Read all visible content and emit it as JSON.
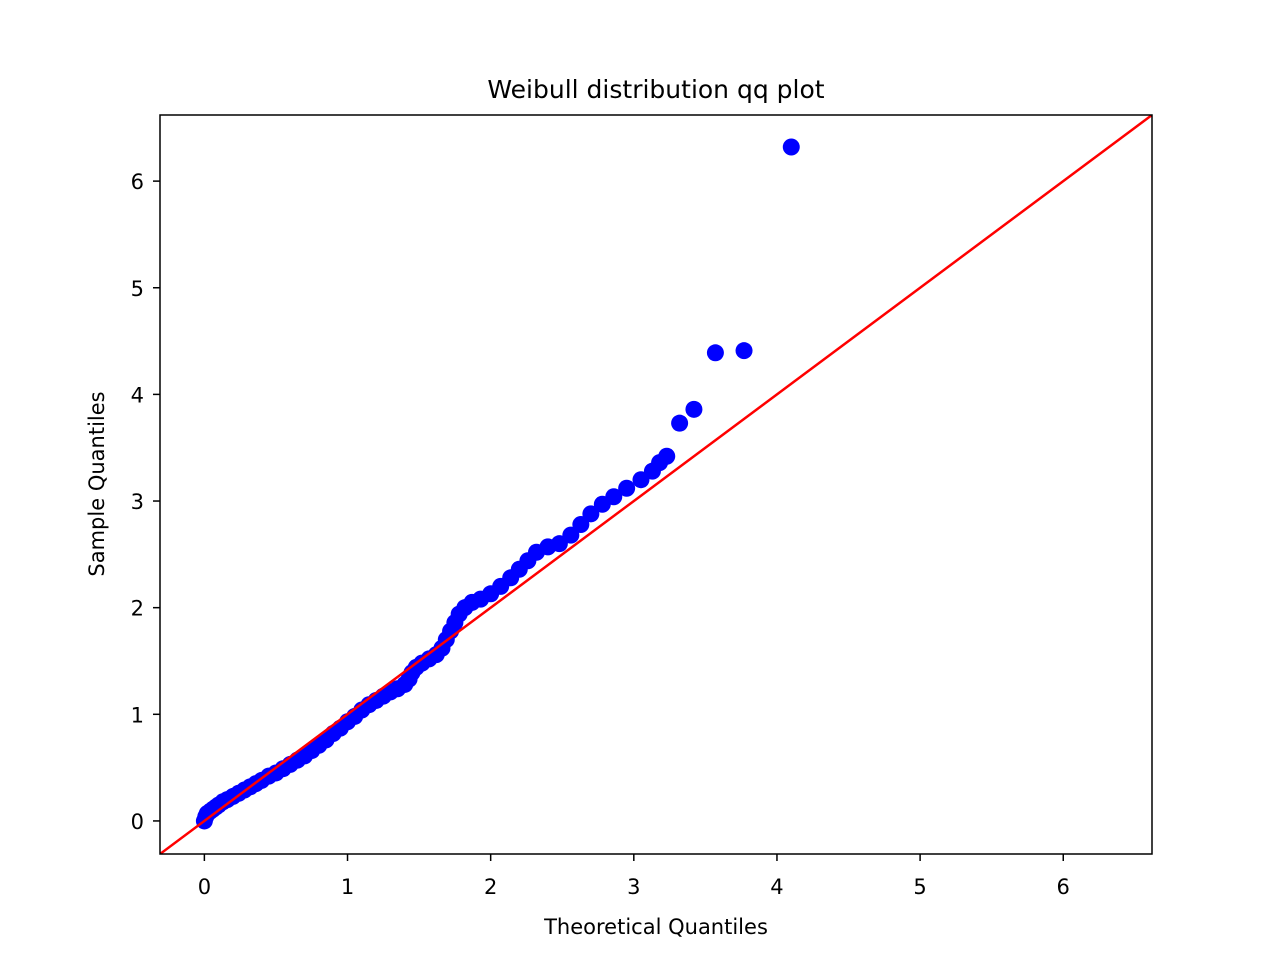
{
  "chart_data": {
    "type": "scatter",
    "title": "Weibull distribution qq plot",
    "xlabel": "Theoretical Quantiles",
    "ylabel": "Sample Quantiles",
    "xlim": [
      -0.31,
      6.62
    ],
    "ylim": [
      -0.31,
      6.62
    ],
    "xticks": [
      0,
      1,
      2,
      3,
      4,
      5,
      6
    ],
    "yticks": [
      0,
      1,
      2,
      3,
      4,
      5,
      6
    ],
    "grid": false,
    "colors": {
      "points": "#0000ff",
      "reference_line": "#ff0000"
    },
    "reference_line": {
      "slope": 1,
      "intercept": 0
    },
    "series": [
      {
        "type": "scatter",
        "points": [
          [
            0.0,
            0.0
          ],
          [
            0.01,
            0.04
          ],
          [
            0.02,
            0.07
          ],
          [
            0.04,
            0.09
          ],
          [
            0.06,
            0.11
          ],
          [
            0.08,
            0.13
          ],
          [
            0.1,
            0.15
          ],
          [
            0.13,
            0.18
          ],
          [
            0.16,
            0.2
          ],
          [
            0.2,
            0.23
          ],
          [
            0.24,
            0.26
          ],
          [
            0.28,
            0.29
          ],
          [
            0.32,
            0.32
          ],
          [
            0.36,
            0.35
          ],
          [
            0.4,
            0.38
          ],
          [
            0.45,
            0.42
          ],
          [
            0.5,
            0.45
          ],
          [
            0.55,
            0.49
          ],
          [
            0.6,
            0.53
          ],
          [
            0.65,
            0.57
          ],
          [
            0.7,
            0.61
          ],
          [
            0.75,
            0.66
          ],
          [
            0.8,
            0.71
          ],
          [
            0.85,
            0.76
          ],
          [
            0.9,
            0.82
          ],
          [
            0.95,
            0.87
          ],
          [
            1.0,
            0.93
          ],
          [
            1.05,
            0.98
          ],
          [
            1.1,
            1.04
          ],
          [
            1.15,
            1.09
          ],
          [
            1.2,
            1.13
          ],
          [
            1.25,
            1.17
          ],
          [
            1.3,
            1.21
          ],
          [
            1.35,
            1.24
          ],
          [
            1.4,
            1.28
          ],
          [
            1.43,
            1.33
          ],
          [
            1.45,
            1.39
          ],
          [
            1.48,
            1.44
          ],
          [
            1.52,
            1.48
          ],
          [
            1.57,
            1.52
          ],
          [
            1.62,
            1.56
          ],
          [
            1.66,
            1.62
          ],
          [
            1.69,
            1.7
          ],
          [
            1.72,
            1.78
          ],
          [
            1.75,
            1.86
          ],
          [
            1.78,
            1.94
          ],
          [
            1.82,
            2.0
          ],
          [
            1.87,
            2.05
          ],
          [
            1.93,
            2.08
          ],
          [
            2.0,
            2.13
          ],
          [
            2.07,
            2.2
          ],
          [
            2.14,
            2.28
          ],
          [
            2.2,
            2.36
          ],
          [
            2.26,
            2.44
          ],
          [
            2.32,
            2.52
          ],
          [
            2.4,
            2.57
          ],
          [
            2.48,
            2.6
          ],
          [
            2.56,
            2.68
          ],
          [
            2.63,
            2.78
          ],
          [
            2.7,
            2.88
          ],
          [
            2.78,
            2.97
          ],
          [
            2.86,
            3.04
          ],
          [
            2.95,
            3.12
          ],
          [
            3.05,
            3.2
          ],
          [
            3.13,
            3.28
          ],
          [
            3.18,
            3.36
          ],
          [
            3.23,
            3.42
          ],
          [
            3.32,
            3.73
          ],
          [
            3.42,
            3.86
          ],
          [
            3.57,
            4.39
          ],
          [
            3.77,
            4.41
          ],
          [
            4.1,
            6.32
          ]
        ]
      }
    ]
  }
}
